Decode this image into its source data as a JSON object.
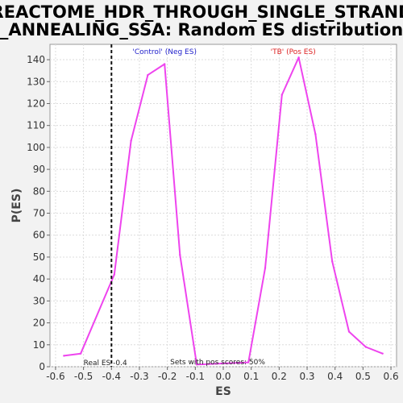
{
  "chart_data": {
    "type": "line",
    "title_lines": [
      "REACTOME_HDR_THROUGH_SINGLE_STRAND",
      "_ANNEALING_SSA: Random ES distribution"
    ],
    "xlabel": "ES",
    "ylabel": "P(ES)",
    "xlim": [
      -0.62,
      0.62
    ],
    "ylim": [
      0,
      147
    ],
    "x_ticks": [
      -0.6,
      -0.5,
      -0.4,
      -0.3,
      -0.2,
      -0.1,
      0.0,
      0.1,
      0.2,
      0.3,
      0.4,
      0.5,
      0.6
    ],
    "x_tick_labels": [
      "-0.6",
      "-0.5",
      "-0.4",
      "-0.3",
      "-0.2",
      "-0.1",
      "0.0",
      "0.1",
      "0.2",
      "0.3",
      "0.4",
      "0.5",
      "0.6"
    ],
    "y_ticks": [
      0,
      10,
      20,
      30,
      40,
      50,
      60,
      70,
      80,
      90,
      100,
      110,
      120,
      130,
      140
    ],
    "y_tick_labels": [
      "0",
      "10",
      "20",
      "30",
      "40",
      "50",
      "60",
      "70",
      "80",
      "90",
      "100",
      "110",
      "120",
      "130",
      "140"
    ],
    "grid": true,
    "series": [
      {
        "color": "#ee44ee",
        "x": [
          -0.57,
          -0.51,
          -0.39,
          -0.33,
          -0.27,
          -0.21,
          -0.155,
          -0.095,
          0.09,
          0.15,
          0.21,
          0.27,
          0.33,
          0.39,
          0.45,
          0.51,
          0.57
        ],
        "y": [
          5,
          6,
          42,
          103,
          133,
          138,
          51,
          1,
          2,
          45,
          124,
          141,
          106,
          48,
          16,
          9,
          6
        ]
      }
    ],
    "real_es": -0.4,
    "annotations": {
      "neg_label": "'Control' (Neg ES)",
      "neg_color": "#2222cc",
      "pos_label": "'TB' (Pos ES)",
      "pos_color": "#dd2222",
      "real_es_label": "Real ES -0.4",
      "pos_scores_label": "Sets with pos scores: 50%"
    }
  }
}
